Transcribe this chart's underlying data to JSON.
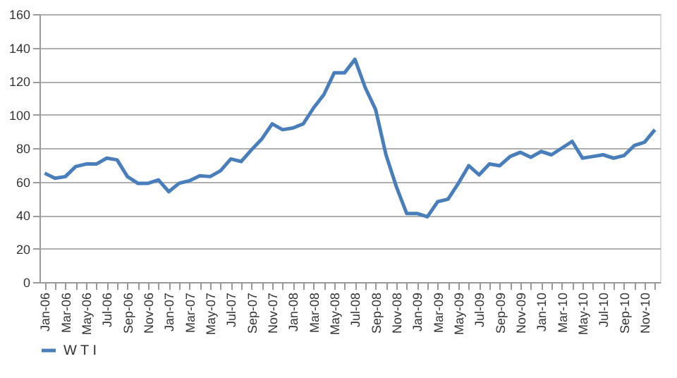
{
  "chart_data": {
    "type": "line",
    "categories": [
      "Jan-06",
      null,
      "Mar-06",
      null,
      "May-06",
      null,
      "Jul-06",
      null,
      "Sep-06",
      null,
      "Nov-06",
      null,
      "Jan-07",
      null,
      "Mar-07",
      null,
      "May-07",
      null,
      "Jul-07",
      null,
      "Sep-07",
      null,
      "Nov-07",
      null,
      "Jan-08",
      null,
      "Mar-08",
      null,
      "May-08",
      null,
      "Jul-08",
      null,
      "Sep-08",
      null,
      "Nov-08",
      null,
      "Jan-09",
      null,
      "Mar-09",
      null,
      "May-09",
      null,
      "Jul-09",
      null,
      "Sep-09",
      null,
      "Nov-09",
      null,
      "Jan-10",
      null,
      "Mar-10",
      null,
      "May-10",
      null,
      "Jul-10",
      null,
      "Sep-10",
      null,
      "Nov-10",
      null
    ],
    "series": [
      {
        "name": "W T I",
        "color": "#4a7ebb",
        "values": [
          65,
          62,
          63,
          69,
          70.5,
          70.5,
          74,
          73,
          63,
          59,
          59,
          61,
          54,
          59,
          60.5,
          63.5,
          63,
          66.5,
          73.5,
          72,
          79,
          85.5,
          94.5,
          91,
          92,
          94.5,
          104,
          112,
          125,
          125,
          133,
          116,
          103,
          76,
          57,
          41,
          41,
          39,
          48,
          49.5,
          59,
          69.5,
          64,
          70.5,
          69.5,
          75,
          77.5,
          74.5,
          78,
          76,
          80,
          84,
          74,
          75,
          76,
          74,
          75.5,
          81.5,
          83.5,
          91
        ]
      }
    ],
    "ylim": [
      0,
      160
    ],
    "yticks": [
      0,
      20,
      40,
      60,
      80,
      100,
      120,
      140,
      160
    ],
    "grid": "y",
    "legend": "bottom",
    "marker": "none",
    "line_style": "solid"
  }
}
